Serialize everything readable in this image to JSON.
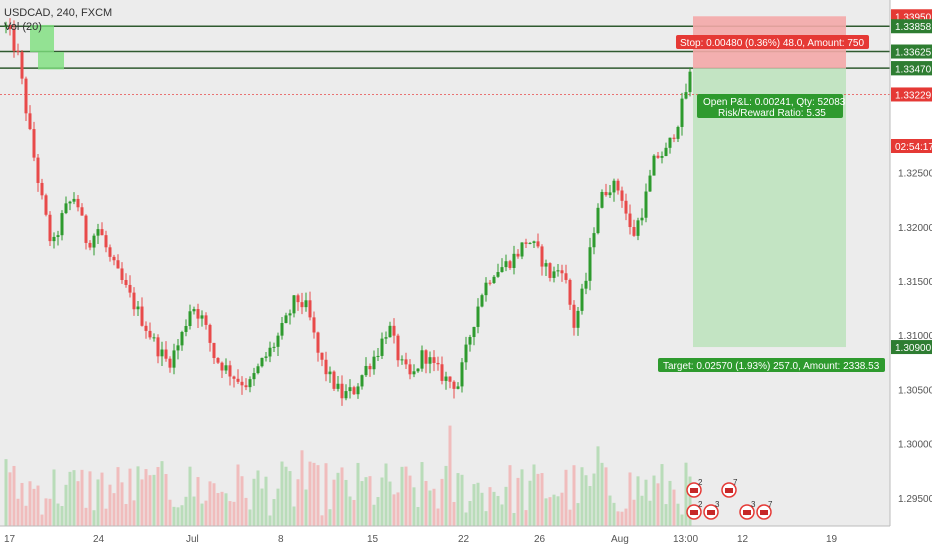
{
  "header": {
    "symbol_line": "USDCAD, 240, FXCM",
    "volume_label": "Vol (20)"
  },
  "colors": {
    "background": "#ececec",
    "up": "#2e9a2e",
    "down": "#e84a4a",
    "stop_zone": "#f4a9a9",
    "target_zone": "#bfe3bf",
    "level_line": "#2f5a2f",
    "price_label_bg": "#2e7d32",
    "stop_label_bg": "#e53935",
    "current_price_bg": "#e53935"
  },
  "price_axis": {
    "tick_labels": [
      "1.32500",
      "1.32000",
      "1.31500",
      "1.31000",
      "1.30500",
      "1.30000",
      "1.29500"
    ],
    "level_labels": [
      "1.33950",
      "1.33858",
      "1.33625",
      "1.33472",
      "1.33470",
      "1.33229",
      "02:54:17",
      "1.30900"
    ]
  },
  "time_axis": {
    "labels": [
      "17",
      "24",
      "Jul",
      "8",
      "15",
      "22",
      "26",
      "Aug",
      "13:00",
      "12",
      "19"
    ]
  },
  "position_tool": {
    "stop_text": "Stop: 0.00480 (0.36%) 48.0, Amount: 750",
    "open_pnl_text": "Open P&L: 0.00241, Qty: 52083",
    "risk_reward_text": "Risk/Reward Ratio: 5.35",
    "target_text": "Target: 0.02570 (1.93%) 257.0, Amount: 2338.53"
  },
  "events": {
    "badges": [
      "2",
      "7",
      "2",
      "3",
      "3",
      "7"
    ]
  },
  "chart_data": {
    "type": "candlestick",
    "symbol": "USDCAD",
    "timeframe": "240",
    "source": "FXCM",
    "ylim": [
      1.2925,
      1.341
    ],
    "horizontal_levels": [
      1.33858,
      1.33625,
      1.33472
    ],
    "current_price": 1.33229,
    "position": {
      "entry": 1.3347,
      "stop": 1.3395,
      "target": 1.309
    },
    "close_path": [
      1.3385,
      1.336,
      1.329,
      1.323,
      1.318,
      1.3215,
      1.323,
      1.3185,
      1.32,
      1.317,
      1.315,
      1.313,
      1.311,
      1.309,
      1.3075,
      1.3095,
      1.313,
      1.3115,
      1.308,
      1.307,
      1.306,
      1.3055,
      1.3075,
      1.309,
      1.311,
      1.3135,
      1.3125,
      1.308,
      1.306,
      1.3045,
      1.305,
      1.307,
      1.3085,
      1.311,
      1.3075,
      1.306,
      1.3085,
      1.307,
      1.306,
      1.3055,
      1.31,
      1.314,
      1.316,
      1.3165,
      1.3175,
      1.319,
      1.3175,
      1.3155,
      1.3165,
      1.311,
      1.315,
      1.322,
      1.324,
      1.3235,
      1.319,
      1.322,
      1.3265,
      1.327,
      1.33,
      1.334
    ]
  }
}
